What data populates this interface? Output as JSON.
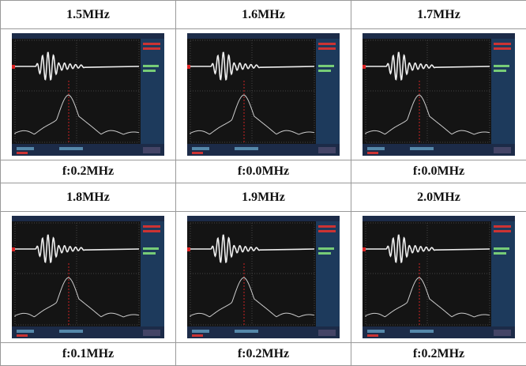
{
  "rows": [
    {
      "headers": [
        "1.5MHz",
        "1.6MHz",
        "1.7MHz"
      ],
      "captions": [
        "f:0.2MHz",
        "f:0.0MHz",
        "f:0.0MHz"
      ]
    },
    {
      "headers": [
        "1.8MHz",
        "1.9MHz",
        "2.0MHz"
      ],
      "captions": [
        "f:0.1MHz",
        "f:0.2MHz",
        "f:0.2MHz"
      ]
    }
  ]
}
